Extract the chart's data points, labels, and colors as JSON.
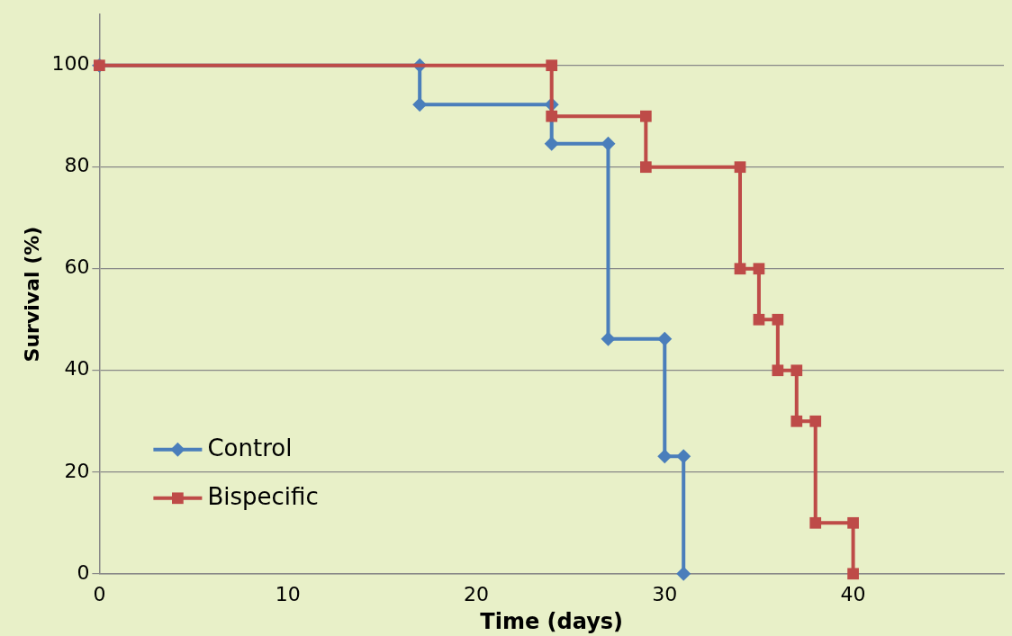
{
  "chart_data": {
    "type": "line",
    "xlabel": "Time (days)",
    "ylabel": "Survival (%)",
    "xlim": [
      0,
      48
    ],
    "xticks": [
      0,
      10,
      20,
      30,
      40
    ],
    "ylim": [
      0,
      110
    ],
    "yticks": [
      0,
      20,
      40,
      60,
      80,
      100
    ],
    "grid": "y",
    "legend": "bottom left",
    "line_style": "solid",
    "series": [
      {
        "name": "Control",
        "color": "#4a7ebb",
        "marker": "diamond",
        "x": [
          0,
          17,
          17,
          24,
          24,
          27,
          27,
          30,
          30,
          31,
          31
        ],
        "values": [
          100,
          100,
          92.3,
          92.3,
          84.6,
          84.6,
          46.2,
          46.2,
          23.1,
          23.1,
          0
        ]
      },
      {
        "name": "Bispecific",
        "color": "#be4b48",
        "marker": "square",
        "x": [
          0,
          24,
          24,
          29,
          29,
          34,
          34,
          35,
          35,
          36,
          36,
          37,
          37,
          38,
          38,
          40,
          40
        ],
        "values": [
          100,
          100,
          90,
          90,
          80,
          80,
          60,
          60,
          50,
          50,
          40,
          40,
          30,
          30,
          10,
          10,
          0
        ]
      }
    ]
  }
}
